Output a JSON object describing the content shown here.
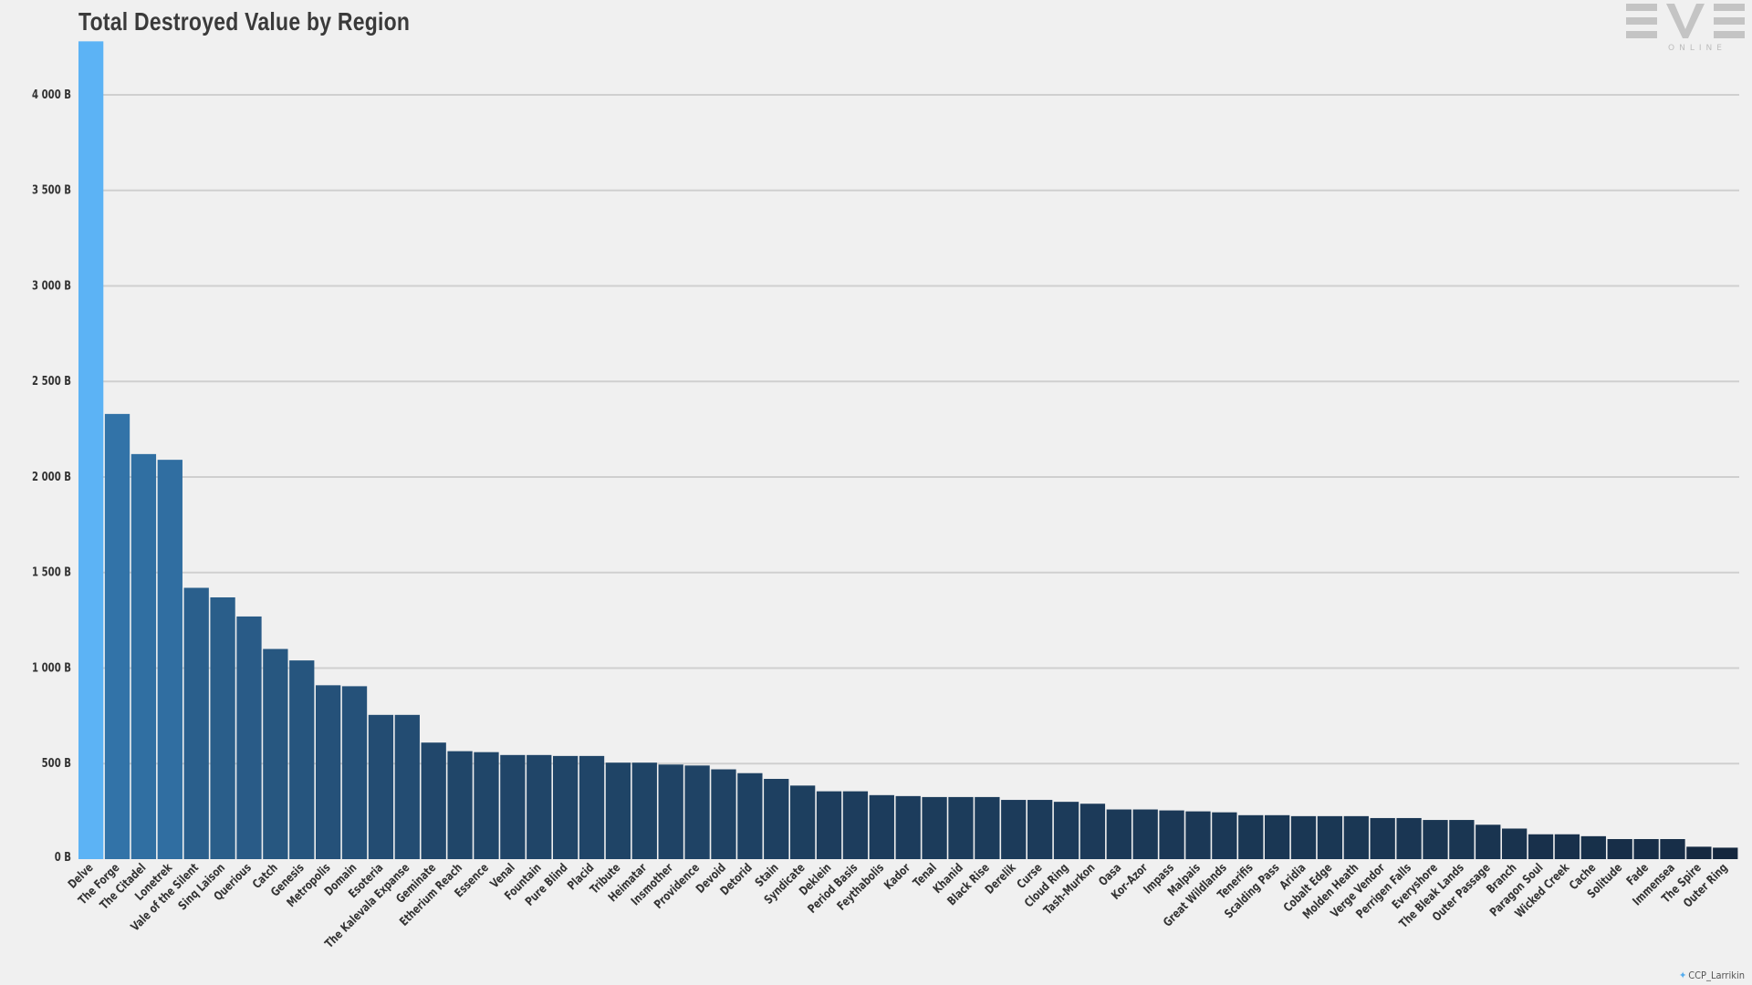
{
  "chart_data": {
    "type": "bar",
    "title": "Total Destroyed Value by Region",
    "xlabel": "",
    "ylabel": "",
    "ylim": [
      0,
      4300
    ],
    "yticks": [
      0,
      500,
      1000,
      1500,
      2000,
      2500,
      3000,
      3500,
      4000
    ],
    "ytick_labels": [
      "0 B",
      "500 B",
      "1 000 B",
      "1 500 B",
      "2 000 B",
      "2 500 B",
      "3 000 B",
      "3 500 B",
      "4 000 B"
    ],
    "grid": "horizontal",
    "categories": [
      "Delve",
      "The Forge",
      "The Citadel",
      "Lonetrek",
      "Vale of the Silent",
      "Sinq Laison",
      "Querious",
      "Catch",
      "Genesis",
      "Metropolis",
      "Domain",
      "Esoteria",
      "The Kalevala Expanse",
      "Geminate",
      "Etherium Reach",
      "Essence",
      "Venal",
      "Fountain",
      "Pure Blind",
      "Placid",
      "Tribute",
      "Heimatar",
      "Insmother",
      "Providence",
      "Devoid",
      "Detorid",
      "Stain",
      "Syndicate",
      "Deklein",
      "Period Basis",
      "Feythabolis",
      "Kador",
      "Tenal",
      "Khanid",
      "Black Rise",
      "Derelik",
      "Curse",
      "Cloud Ring",
      "Tash-Murkon",
      "Oasa",
      "Kor-Azor",
      "Impass",
      "Malpais",
      "Great Wildlands",
      "Tenerifis",
      "Scalding Pass",
      "Aridia",
      "Cobalt Edge",
      "Molden Heath",
      "Verge Vendor",
      "Perrigen Falls",
      "Everyshore",
      "The Bleak Lands",
      "Outer Passage",
      "Branch",
      "Paragon Soul",
      "Wicked Creek",
      "Cache",
      "Solitude",
      "Fade",
      "Immensea",
      "The Spire",
      "Outer Ring"
    ],
    "values": [
      4280,
      2330,
      2120,
      2090,
      1420,
      1370,
      1270,
      1100,
      1040,
      910,
      905,
      755,
      755,
      610,
      565,
      560,
      545,
      545,
      540,
      540,
      505,
      505,
      495,
      490,
      470,
      450,
      420,
      385,
      355,
      355,
      335,
      330,
      325,
      325,
      325,
      310,
      310,
      300,
      290,
      260,
      260,
      255,
      250,
      245,
      230,
      230,
      225,
      225,
      225,
      215,
      215,
      205,
      205,
      180,
      160,
      130,
      130,
      120,
      105,
      105,
      105,
      65,
      60
    ],
    "colors": {
      "highlight": "#5cb3f5",
      "top": "#3273a8",
      "bottom": "#14273e",
      "grid": "#cfcfcf",
      "text": "#333333"
    }
  },
  "logo": {
    "main": "EVE",
    "sub": "ONLINE"
  },
  "credit": {
    "handle": "CCP_Larrikin",
    "icon": "twitter-bird-icon"
  }
}
